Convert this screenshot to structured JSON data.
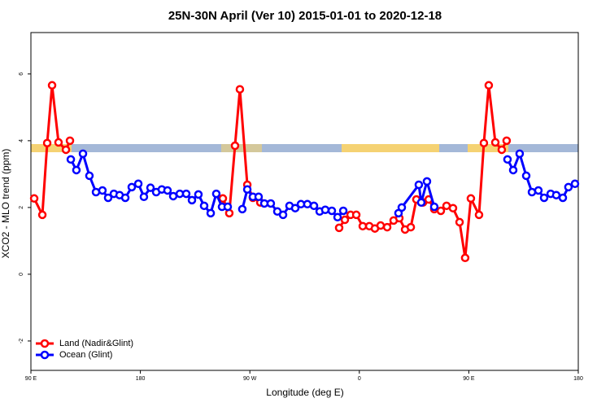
{
  "chart_data": {
    "type": "line",
    "title": "25N-30N April (Ver 10)   2015-01-01 to 2020-12-18",
    "x_label": "Longitude (deg E)",
    "y_label": "XCO2 - MLO trend (ppm)",
    "xlim": [
      90,
      540
    ],
    "xticks": [
      {
        "value": 90,
        "label": "90 E"
      },
      180,
      {
        "value": 270,
        "label": "90 W"
      },
      {
        "value": 360,
        "label": "0"
      },
      {
        "value": 450,
        "label": "90 E"
      },
      {
        "value": 540,
        "label": "180"
      }
    ],
    "ylim": [
      -2.88,
      7.24
    ],
    "yticks": [
      -2,
      0,
      2,
      4,
      6
    ],
    "legend": "bottom-left",
    "series": [
      {
        "name": "Land (Nadir&Glint)",
        "color": "#ff0000",
        "x": [
          92.7,
          99.4,
          103.4,
          107.4,
          112.7,
          118.8,
          122.1,
          null,
          247.8,
          253.1,
          257.8,
          261.8,
          267.9,
          272.5,
          278.6,
          null,
          343.4,
          348.1,
          352.8,
          357.5,
          362.8,
          368.2,
          372.8,
          377.5,
          382.9,
          388.2,
          392.9,
          397.6,
          402.3,
          406.9,
          412.3,
          417.0,
          421.6,
          427.0,
          431.7,
          437.0,
          442.4,
          447.0,
          451.7,
          458.4,
          462.4,
          466.4,
          471.8,
          477.1,
          481.1
        ],
        "values": [
          2.27,
          1.78,
          3.93,
          5.66,
          3.95,
          3.73,
          4.0,
          null,
          2.27,
          1.83,
          3.85,
          5.54,
          2.68,
          2.29,
          2.15,
          null,
          1.39,
          1.63,
          1.78,
          1.78,
          1.44,
          1.44,
          1.37,
          1.46,
          1.41,
          1.61,
          1.68,
          1.34,
          1.41,
          2.24,
          2.15,
          2.24,
          1.95,
          1.9,
          2.05,
          1.98,
          1.56,
          0.49,
          2.27,
          1.78,
          3.93,
          5.66,
          3.95,
          3.73,
          4.0
        ]
      },
      {
        "name": "Ocean (Glint)",
        "color": "#0000ff",
        "x": [
          122.8,
          127.4,
          132.8,
          138.1,
          143.5,
          148.8,
          153.5,
          158.2,
          162.9,
          167.6,
          172.9,
          178.3,
          182.9,
          188.3,
          193.0,
          197.6,
          202.3,
          207.0,
          212.4,
          217.7,
          222.4,
          227.7,
          232.4,
          237.8,
          242.4,
          247.1,
          251.8,
          null,
          263.8,
          267.9,
          272.5,
          277.2,
          281.9,
          287.2,
          292.6,
          297.3,
          302.6,
          307.3,
          312.0,
          317.3,
          322.7,
          327.4,
          332.0,
          337.4,
          342.1,
          346.8,
          null,
          392.2,
          394.9,
          408.9,
          410.9,
          415.6,
          421.6,
          null,
          481.8,
          486.5,
          491.8,
          497.2,
          501.9,
          507.2,
          511.9,
          517.3,
          521.9,
          527.3,
          531.9,
          537.3
        ],
        "values": [
          3.44,
          3.12,
          3.61,
          2.95,
          2.46,
          2.51,
          2.29,
          2.41,
          2.37,
          2.29,
          2.61,
          2.71,
          2.32,
          2.59,
          2.46,
          2.54,
          2.51,
          2.34,
          2.41,
          2.41,
          2.22,
          2.39,
          2.05,
          1.83,
          2.41,
          2.02,
          2.02,
          null,
          1.95,
          2.54,
          2.32,
          2.32,
          2.12,
          2.12,
          1.88,
          1.78,
          2.05,
          1.98,
          2.1,
          2.1,
          2.05,
          1.88,
          1.93,
          1.9,
          1.71,
          1.9,
          null,
          1.83,
          2.0,
          2.68,
          2.15,
          2.78,
          2.02,
          null,
          3.44,
          3.12,
          3.61,
          2.95,
          2.46,
          2.51,
          2.29,
          2.41,
          2.37,
          2.29,
          2.61,
          2.71
        ]
      }
    ]
  }
}
